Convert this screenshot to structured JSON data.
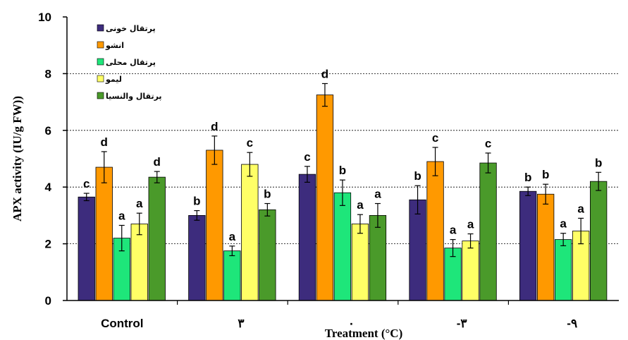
{
  "chart_data": {
    "type": "bar",
    "xlabel": "Treatment (°C)",
    "ylabel": "APX activity (IU/g FW))",
    "ylim": [
      0,
      10
    ],
    "yticks": [
      "0",
      "2",
      "4",
      "6",
      "8",
      "10"
    ],
    "grid": "horizontal dashed at 2, 4, 6, 8",
    "legend_position": "top-left",
    "categories": [
      "Control",
      "۳",
      "۰",
      "-۳",
      "-۹"
    ],
    "series": [
      {
        "name": "پرتقال خونی",
        "color": "#3d2c7d",
        "values": [
          3.65,
          3.0,
          4.45,
          3.55,
          3.85
        ],
        "errors": [
          0.13,
          0.17,
          0.28,
          0.5,
          0.15
        ],
        "letters": [
          "c",
          "b",
          "c",
          "b",
          "b"
        ]
      },
      {
        "name": "انشو",
        "color": "#ff9900",
        "values": [
          4.7,
          5.3,
          7.25,
          4.9,
          3.75
        ],
        "errors": [
          0.55,
          0.5,
          0.4,
          0.5,
          0.35
        ],
        "letters": [
          "d",
          "d",
          "d",
          "c",
          "b"
        ]
      },
      {
        "name": "پرتقال محلی",
        "color": "#1ee67a",
        "values": [
          2.2,
          1.75,
          3.8,
          1.85,
          2.15
        ],
        "errors": [
          0.45,
          0.17,
          0.45,
          0.3,
          0.22
        ],
        "letters": [
          "a",
          "a",
          "b",
          "a",
          "a"
        ]
      },
      {
        "name": "لیمو",
        "color": "#ffff66",
        "values": [
          2.7,
          4.8,
          2.7,
          2.1,
          2.45
        ],
        "errors": [
          0.38,
          0.42,
          0.33,
          0.25,
          0.45
        ],
        "letters": [
          "a",
          "c",
          "a",
          "a",
          "a"
        ]
      },
      {
        "name": "پرتقال والنسیا",
        "color": "#4a9a2a",
        "values": [
          4.35,
          3.2,
          3.0,
          4.85,
          4.2
        ],
        "errors": [
          0.2,
          0.22,
          0.42,
          0.35,
          0.32
        ],
        "letters": [
          "d",
          "b",
          "a",
          "c",
          "b"
        ]
      }
    ]
  }
}
